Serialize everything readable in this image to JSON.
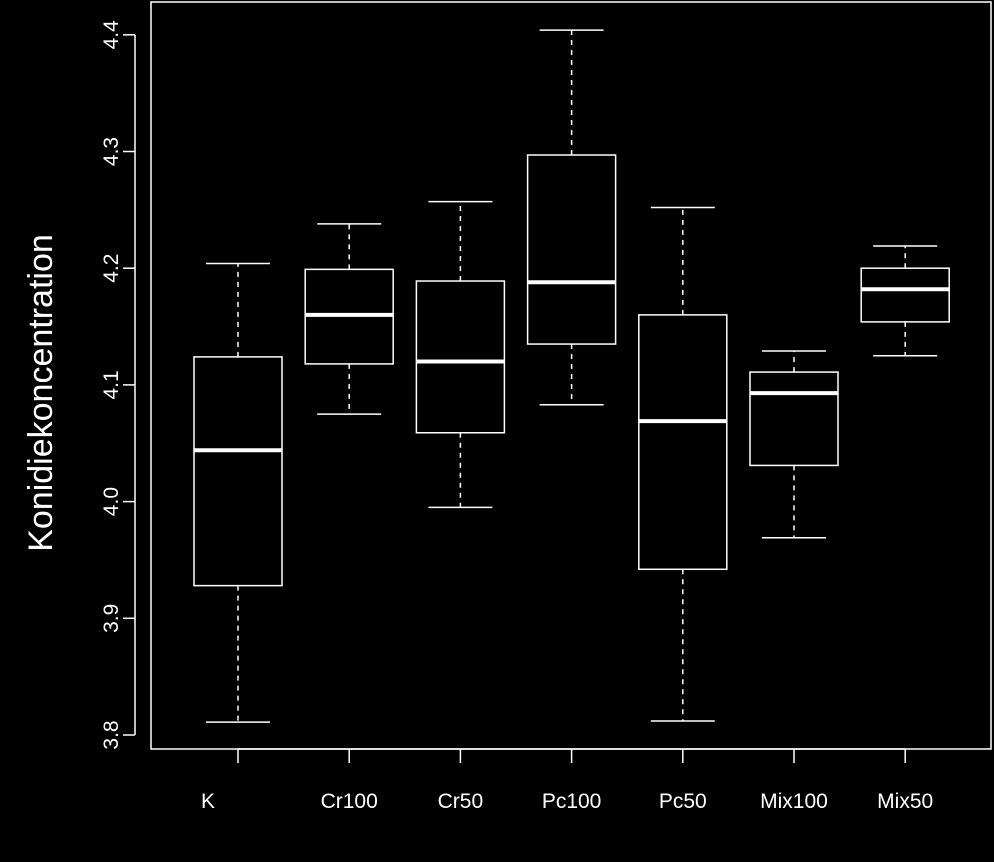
{
  "chart_data": {
    "type": "boxplot",
    "title": "",
    "xlabel": "",
    "ylabel": "Konidiekoncentration",
    "ylim": [
      3.79,
      4.42
    ],
    "yticks": [
      3.8,
      3.9,
      4.0,
      4.1,
      4.2,
      4.3,
      4.4
    ],
    "ytick_labels": [
      "3.8",
      "3.9",
      "4.0",
      "4.1",
      "4.2",
      "4.3",
      "4.4"
    ],
    "categories": [
      "K",
      "Cr100",
      "Cr50",
      "Pc100",
      "Pc50",
      "Mix100",
      "Mix50"
    ],
    "boxes": [
      {
        "name": "K",
        "min": 3.811,
        "q1": 3.928,
        "median": 4.044,
        "q3": 4.124,
        "max": 4.204
      },
      {
        "name": "Cr100",
        "min": 4.075,
        "q1": 4.118,
        "median": 4.16,
        "q3": 4.199,
        "max": 4.238
      },
      {
        "name": "Cr50",
        "min": 3.995,
        "q1": 4.059,
        "median": 4.12,
        "q3": 4.189,
        "max": 4.257
      },
      {
        "name": "Pc100",
        "min": 4.083,
        "q1": 4.135,
        "median": 4.188,
        "q3": 4.297,
        "max": 4.404
      },
      {
        "name": "Pc50",
        "min": 3.812,
        "q1": 3.942,
        "median": 4.069,
        "q3": 4.16,
        "max": 4.252
      },
      {
        "name": "Mix100",
        "min": 3.969,
        "q1": 4.031,
        "median": 4.093,
        "q3": 4.111,
        "max": 4.129
      },
      {
        "name": "Mix50",
        "min": 4.125,
        "q1": 4.154,
        "median": 4.182,
        "q3": 4.2,
        "max": 4.219
      }
    ],
    "grid": false,
    "colors": {
      "background": "#000000",
      "foreground": "#ffffff"
    }
  }
}
